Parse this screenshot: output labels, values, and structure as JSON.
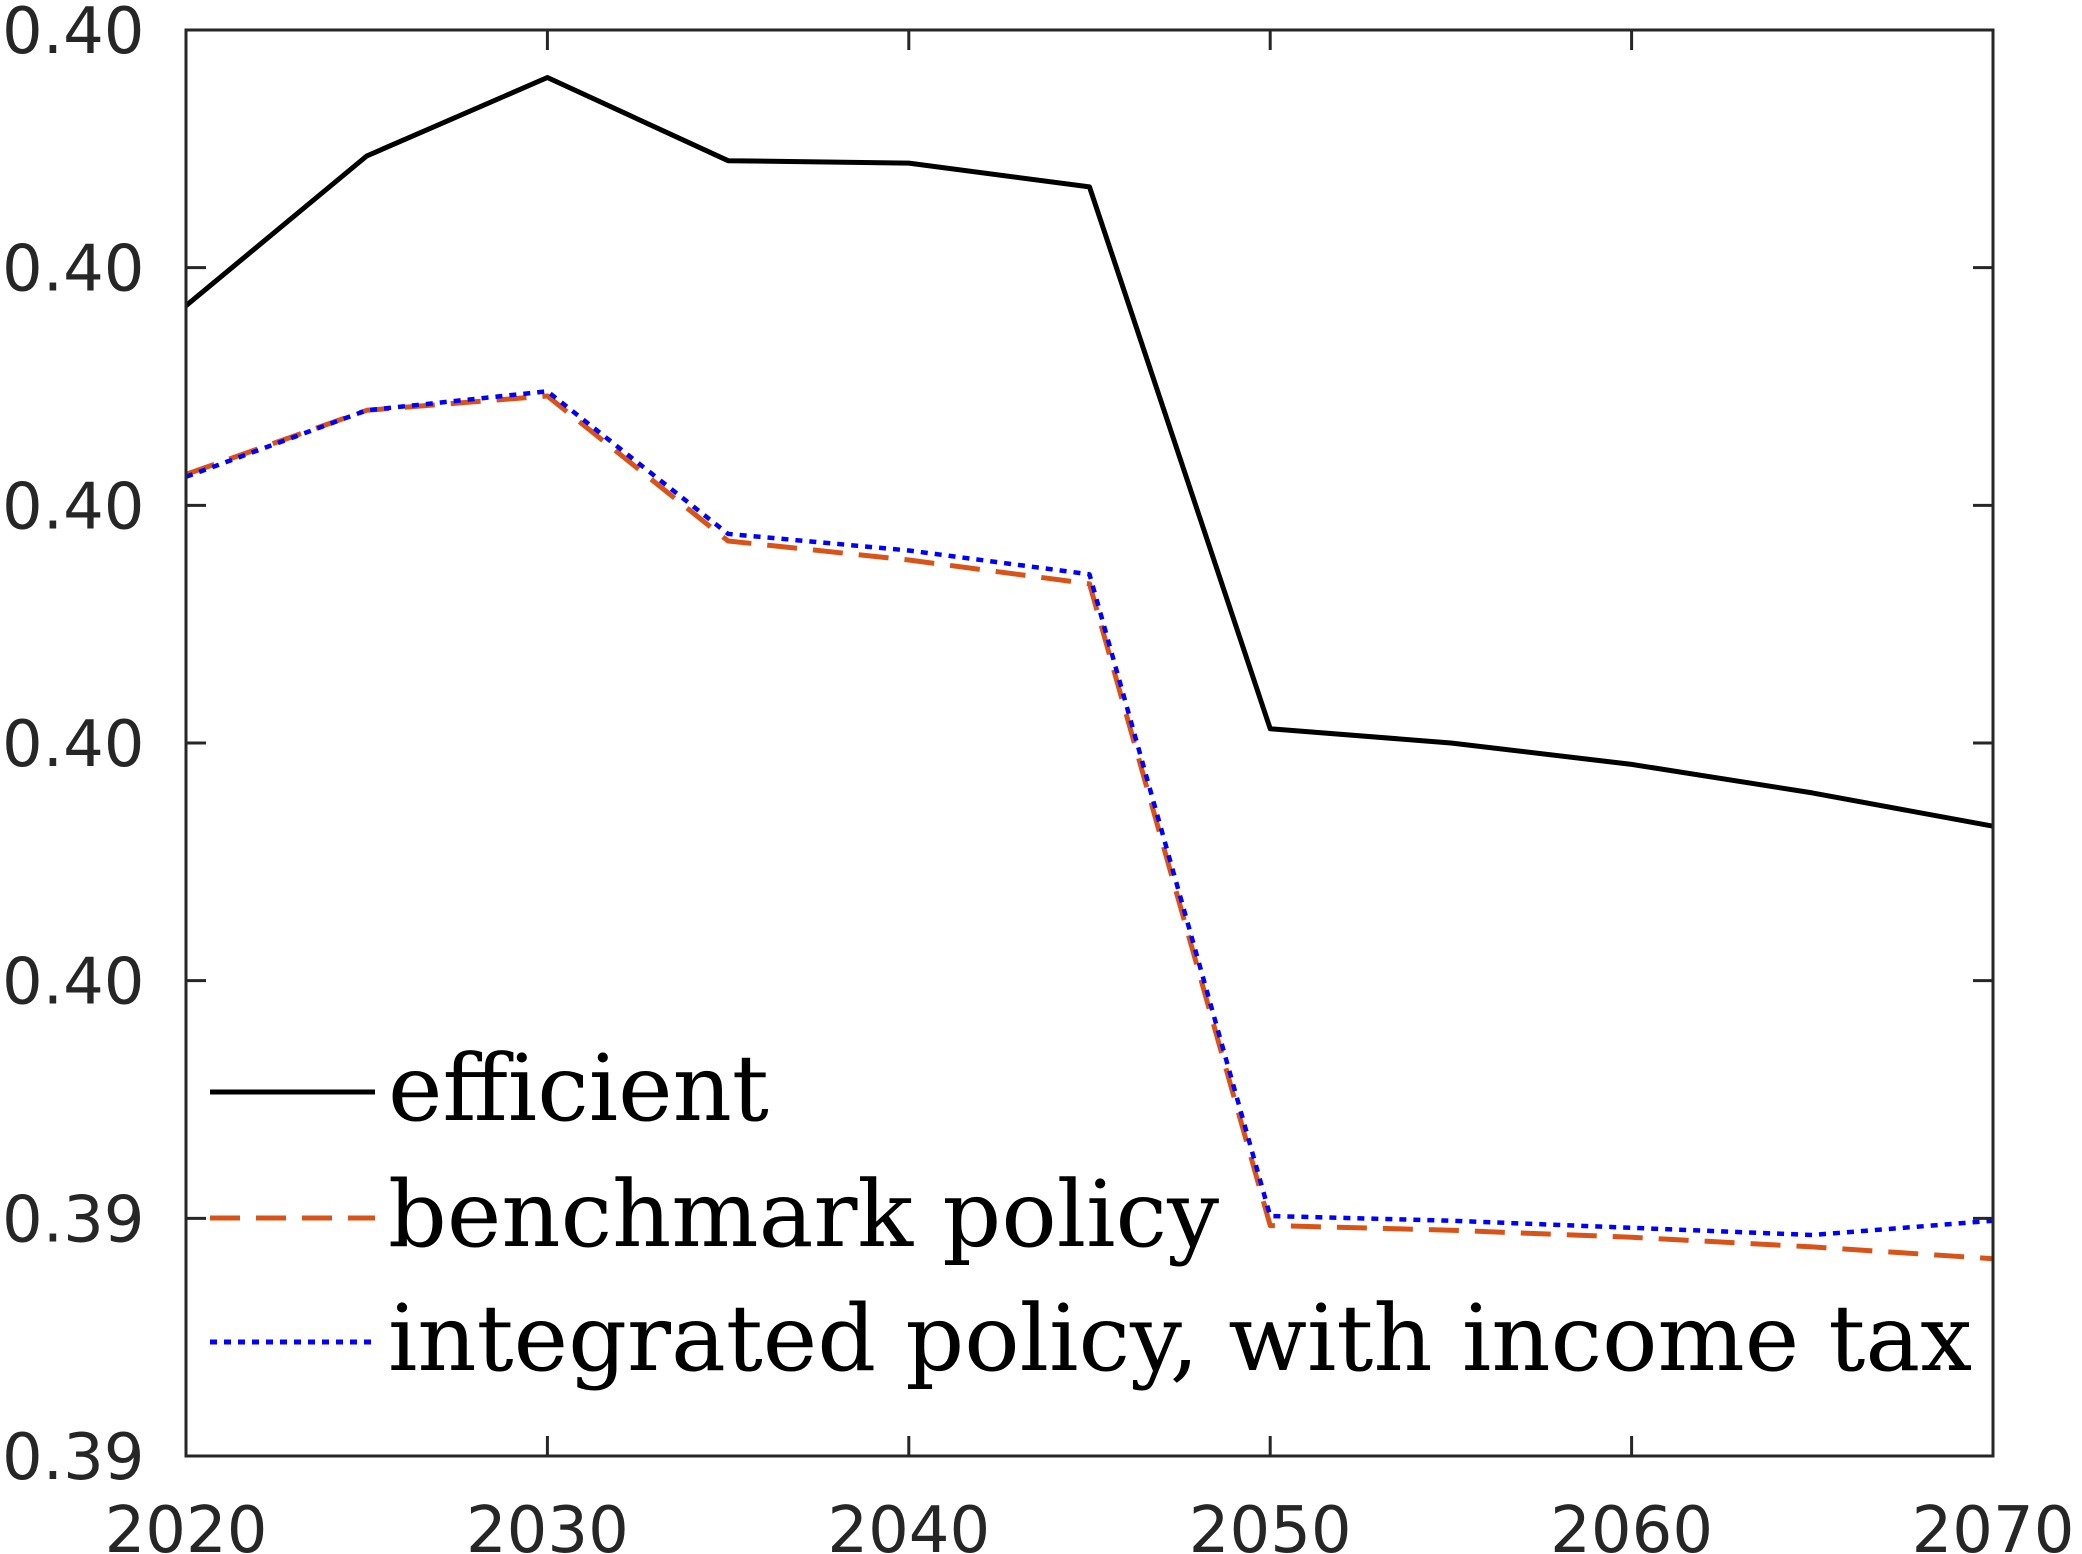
{
  "chart_data": {
    "type": "line",
    "title": "",
    "xlabel": "",
    "ylabel": "",
    "xlim": [
      2020,
      2070
    ],
    "ylim": [
      0,
      6
    ],
    "grid": false,
    "legend_position": "bottom-left",
    "x_ticks": [
      {
        "value": 2020,
        "label": "2020"
      },
      {
        "value": 2030,
        "label": "2030"
      },
      {
        "value": 2040,
        "label": "2040"
      },
      {
        "value": 2050,
        "label": "2050"
      },
      {
        "value": 2060,
        "label": "2060"
      },
      {
        "value": 2070,
        "label": "2070"
      }
    ],
    "y_ticks": [
      {
        "value": 0,
        "label": "0.39"
      },
      {
        "value": 1,
        "label": "0.39"
      },
      {
        "value": 2,
        "label": "0.40"
      },
      {
        "value": 3,
        "label": "0.40"
      },
      {
        "value": 4,
        "label": "0.40"
      },
      {
        "value": 5,
        "label": "0.40"
      },
      {
        "value": 6,
        "label": "0.40"
      }
    ],
    "x": [
      2020,
      2025,
      2030,
      2035,
      2040,
      2045,
      2050,
      2055,
      2060,
      2065,
      2070
    ],
    "series": [
      {
        "name": "efficient",
        "color": "#000000",
        "style": "solid",
        "values": [
          4.84,
          5.47,
          5.8,
          5.45,
          5.44,
          5.34,
          3.06,
          3.0,
          2.91,
          2.79,
          2.65
        ]
      },
      {
        "name": "benchmark policy",
        "color": "#D95319",
        "style": "dashed",
        "values": [
          4.13,
          4.4,
          4.46,
          3.85,
          3.77,
          3.67,
          0.97,
          0.95,
          0.92,
          0.88,
          0.83
        ]
      },
      {
        "name": "integrated policy, with income tax",
        "color": "#0000FF",
        "style": "dotted",
        "values": [
          4.12,
          4.4,
          4.48,
          3.88,
          3.81,
          3.71,
          1.01,
          0.99,
          0.96,
          0.93,
          0.99
        ]
      }
    ]
  }
}
